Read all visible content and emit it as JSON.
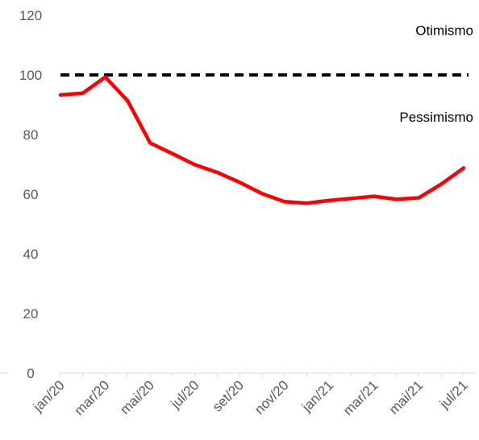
{
  "chart_data": {
    "type": "line",
    "title": "",
    "xlabel": "",
    "ylabel": "",
    "ylim": [
      0,
      120
    ],
    "yticks": [
      0,
      20,
      40,
      60,
      80,
      100,
      120
    ],
    "x": [
      "jan/20",
      "fev/20",
      "mar/20",
      "abr/20",
      "mai/20",
      "jun/20",
      "jul/20",
      "ago/20",
      "set/20",
      "out/20",
      "nov/20",
      "dez/20",
      "jan/21",
      "fev/21",
      "mar/21",
      "abr/21",
      "mai/21",
      "jun/21",
      "jul/21"
    ],
    "xtick_labels": [
      "jan/20",
      "mar/20",
      "mai/20",
      "jul/20",
      "set/20",
      "nov/20",
      "jan/21",
      "mar/21",
      "mai/21",
      "jul/21"
    ],
    "series": [
      {
        "values": [
          93.3,
          93.9,
          99.3,
          91.3,
          77.2,
          73.6,
          69.9,
          67.3,
          64.0,
          60.2,
          57.5,
          57.0,
          57.9,
          58.6,
          59.3,
          58.3,
          58.8,
          63.4,
          68.8
        ],
        "color": "#ff0000"
      }
    ],
    "reference_line": {
      "value": 100,
      "color": "#000000",
      "style": "dashed"
    },
    "annotations": [
      {
        "text": "Otimismo",
        "y": 115
      },
      {
        "text": "Pessimismo",
        "y": 86
      }
    ],
    "grid": false,
    "legend": "none"
  }
}
